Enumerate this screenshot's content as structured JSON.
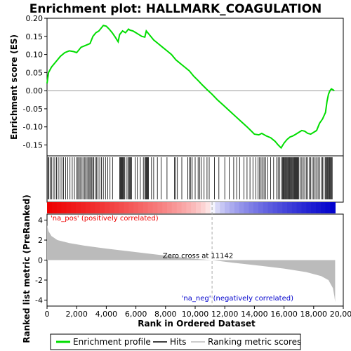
{
  "chart_data": {
    "type": "line",
    "title": "Enrichment plot: HALLMARK_COAGULATION",
    "top_panel": {
      "ylabel": "Enrichment score (ES)",
      "ylim": [
        -0.18,
        0.2
      ],
      "yticks": [
        0.2,
        0.15,
        0.1,
        0.05,
        0.0,
        -0.05,
        -0.1,
        -0.15
      ],
      "ytick_labels": [
        "0.20",
        "0.15",
        "0.10",
        "0.05",
        "0.00",
        "-0.05",
        "-0.10",
        "-0.15"
      ],
      "series": [
        {
          "name": "Enrichment profile",
          "color": "#00dd00",
          "x": [
            0,
            100,
            300,
            600,
            900,
            1200,
            1500,
            1800,
            2000,
            2300,
            2600,
            2900,
            3100,
            3300,
            3500,
            3700,
            3800,
            4000,
            4200,
            4400,
            4600,
            4800,
            4900,
            5100,
            5300,
            5500,
            5600,
            5800,
            6000,
            6200,
            6400,
            6600,
            6700,
            6900,
            7200,
            7500,
            7800,
            8100,
            8400,
            8700,
            9000,
            9300,
            9600,
            9900,
            10200,
            10500,
            10800,
            11142,
            11500,
            11900,
            12300,
            12700,
            13100,
            13500,
            13800,
            14000,
            14300,
            14500,
            14800,
            15100,
            15400,
            15600,
            15800,
            16000,
            16200,
            16400,
            16600,
            16800,
            17000,
            17200,
            17400,
            17600,
            17800,
            18000,
            18200,
            18400,
            18600,
            18800,
            18900,
            19000,
            19100,
            19200,
            19400
          ],
          "y": [
            0.02,
            0.05,
            0.065,
            0.08,
            0.095,
            0.105,
            0.11,
            0.108,
            0.105,
            0.12,
            0.125,
            0.13,
            0.15,
            0.16,
            0.165,
            0.175,
            0.18,
            0.178,
            0.17,
            0.16,
            0.148,
            0.135,
            0.155,
            0.165,
            0.16,
            0.17,
            0.167,
            0.165,
            0.16,
            0.155,
            0.15,
            0.148,
            0.165,
            0.155,
            0.14,
            0.13,
            0.12,
            0.11,
            0.1,
            0.085,
            0.075,
            0.065,
            0.055,
            0.04,
            0.028,
            0.015,
            0.003,
            -0.01,
            -0.025,
            -0.04,
            -0.055,
            -0.07,
            -0.085,
            -0.1,
            -0.112,
            -0.12,
            -0.122,
            -0.118,
            -0.125,
            -0.13,
            -0.14,
            -0.15,
            -0.158,
            -0.145,
            -0.135,
            -0.128,
            -0.125,
            -0.12,
            -0.115,
            -0.11,
            -0.112,
            -0.118,
            -0.12,
            -0.115,
            -0.11,
            -0.09,
            -0.078,
            -0.06,
            -0.03,
            -0.01,
            0.0,
            0.005,
            0.0
          ]
        }
      ]
    },
    "hits": [
      60,
      130,
      210,
      300,
      420,
      520,
      640,
      760,
      880,
      1000,
      1120,
      1260,
      1400,
      1550,
      1700,
      1850,
      2000,
      2080,
      2150,
      2230,
      2320,
      2420,
      2520,
      2600,
      2700,
      2780,
      2850,
      2920,
      3000,
      3080,
      3150,
      3250,
      3350,
      3450,
      3560,
      3680,
      3800,
      3950,
      4100,
      4250,
      4420,
      4900,
      4950,
      5000,
      5050,
      5100,
      5150,
      5200,
      5250,
      5400,
      5500,
      5550,
      5600,
      5650,
      5700,
      5950,
      6100,
      6300,
      6500,
      6600,
      6650,
      6700,
      6750,
      6800,
      6850,
      7050,
      7200,
      7450,
      7700,
      8100,
      8600,
      8700,
      8800,
      9100,
      9500,
      9600,
      9700,
      9800,
      10000,
      10200,
      10300,
      10400,
      10600,
      10800,
      10950,
      11300,
      11600,
      12000,
      12300,
      12600,
      12800,
      13000,
      13300,
      13500,
      13700,
      13900,
      14100,
      14250,
      14350,
      14450,
      14550,
      14650,
      14750,
      14900,
      15100,
      15300,
      15500,
      15600,
      15700,
      15800,
      15900,
      15950,
      16000,
      16050,
      16100,
      16150,
      16200,
      16250,
      16300,
      16350,
      16400,
      16450,
      16500,
      16550,
      16600,
      16650,
      16700,
      16750,
      16800,
      16850,
      16900,
      16950,
      17000,
      17100,
      17200,
      17300,
      17400,
      17500,
      17600,
      17700,
      17800,
      17900,
      18000,
      18100,
      18200,
      18300,
      18400,
      18500,
      18600,
      18700,
      18800,
      18850,
      18900,
      18950,
      19000,
      19050,
      19100,
      19150,
      19200,
      19250
    ],
    "bottom_panel": {
      "ylabel": "Ranked list metric (PreRanked)",
      "xlabel": "Rank in Ordered Dataset",
      "ylim": [
        -4.6,
        4.6
      ],
      "yticks": [
        4,
        2,
        0,
        -2,
        -4
      ],
      "ytick_labels": [
        "4",
        "2",
        "0",
        "-2",
        "-4"
      ],
      "metric_x": [
        0,
        100,
        300,
        700,
        1500,
        2500,
        4000,
        6000,
        8000,
        10000,
        11142,
        12500,
        14000,
        16000,
        17500,
        18500,
        19000,
        19300,
        19400,
        19450
      ],
      "metric_y": [
        3.5,
        2.9,
        2.4,
        2.0,
        1.7,
        1.45,
        1.15,
        0.8,
        0.45,
        0.12,
        0.0,
        -0.25,
        -0.5,
        -0.85,
        -1.2,
        -1.6,
        -2.0,
        -2.8,
        -3.6,
        -4.2
      ],
      "fill_color": "#bbbbbb",
      "zero_cross_x": 11142,
      "zero_cross_label": "Zero cross at 11142",
      "pos_label": "'na_pos' (positively correlated)",
      "neg_label": "'na_neg' (negatively correlated)",
      "pos_color": "#ee0000",
      "neg_color": "#0000cc"
    },
    "xlim": [
      0,
      20000
    ],
    "xticks": [
      0,
      2000,
      4000,
      6000,
      8000,
      10000,
      12000,
      14000,
      16000,
      18000,
      20000
    ],
    "xtick_labels": [
      "0",
      "2,000",
      "4,000",
      "6,000",
      "8,000",
      "10,000",
      "12,000",
      "14,000",
      "16,000",
      "18,000",
      "20,000"
    ],
    "n_genes": 19450,
    "legend": {
      "items": [
        {
          "label": "Enrichment profile",
          "color": "#00dd00"
        },
        {
          "label": "Hits",
          "color": "#000000"
        },
        {
          "label": "Ranking metric scores",
          "color": "#bbbbbb"
        }
      ]
    }
  }
}
